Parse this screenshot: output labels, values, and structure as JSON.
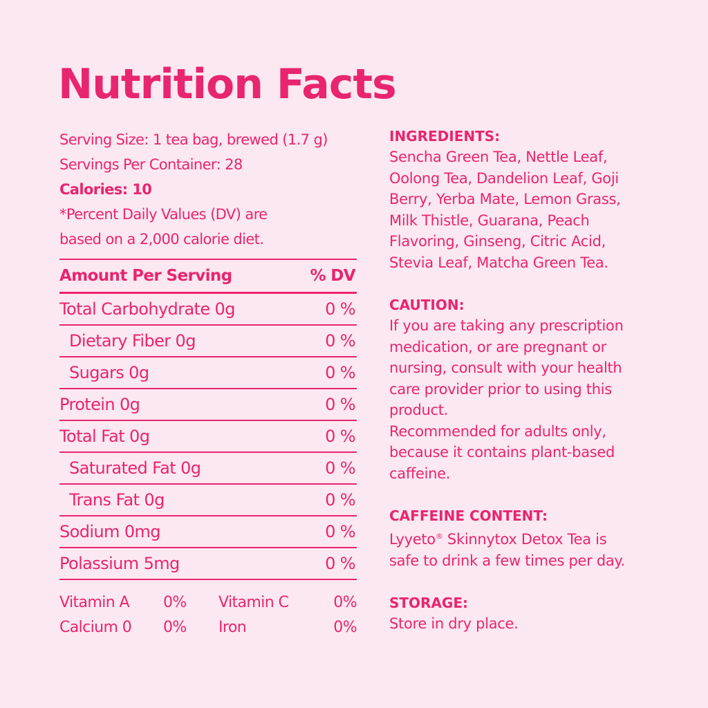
{
  "title": "Nutrition Facts",
  "serving_size": "Serving Size: 1 tea bag, brewed (1.7 g)",
  "servings_per_container": "Servings Per Container: 28",
  "calories": "Calories: 10",
  "dv_note_line1": "*Percent Daily Values (DV) are",
  "dv_note_line2": "based on a 2,000 calorie diet.",
  "table": {
    "header_name": "Amount Per Serving",
    "header_dv": "% DV",
    "rows": [
      {
        "name": "Total Carbohydrate 0g",
        "dv": "0 %"
      },
      {
        "name": "Dietary Fiber 0g",
        "dv": "0 %"
      },
      {
        "name": "Sugars 0g",
        "dv": "0 %"
      },
      {
        "name": "Protein 0g",
        "dv": "0 %"
      },
      {
        "name": "Total Fat 0g",
        "dv": "0 %"
      },
      {
        "name": "Saturated Fat 0g",
        "dv": "0 %"
      },
      {
        "name": "Trans Fat 0g",
        "dv": "0 %"
      },
      {
        "name": "Sodium 0mg",
        "dv": "0 %"
      },
      {
        "name": "Polassium 5mg",
        "dv": "0 %"
      }
    ]
  },
  "vitamins": [
    {
      "name1": "Vitamin A",
      "pct1": "0%",
      "name2": "Vitamin C",
      "pct2": "0%"
    },
    {
      "name1": "Calcium 0",
      "pct1": "0%",
      "name2": "Iron",
      "pct2": "0%"
    }
  ],
  "ingredients": {
    "heading": "INGREDIENTS:",
    "lines": [
      "Sencha Green Tea, Nettle Leaf,",
      "Oolong Tea, Dandelion Leaf, Goji",
      "Berry, Yerba Mate, Lemon Grass,",
      "Milk Thistle, Guarana, Peach",
      "Flavoring, Ginseng, Citric Acid,",
      "Stevia Leaf, Matcha Green Tea."
    ]
  },
  "caution": {
    "heading": "CAUTION:",
    "lines": [
      "If you are taking any prescription",
      "medication, or are pregnant or",
      "nursing, consult with your health",
      "care provider prior to using this",
      "product.",
      "Recommended for adults only,",
      "because it contains plant-based",
      "caffeine."
    ]
  },
  "caffeine": {
    "heading": "CAFFEINE CONTENT:",
    "line1_pre": "Lyyeto",
    "line1_sup": "®",
    "line1_post": " Skinnytox Detox Tea is",
    "line2": "safe to drink a few times per day."
  },
  "storage": {
    "heading": "STORAGE:",
    "line1": "Store in dry place."
  },
  "colors": {
    "accent": "#e8256f",
    "background": "#fbe8f0"
  }
}
